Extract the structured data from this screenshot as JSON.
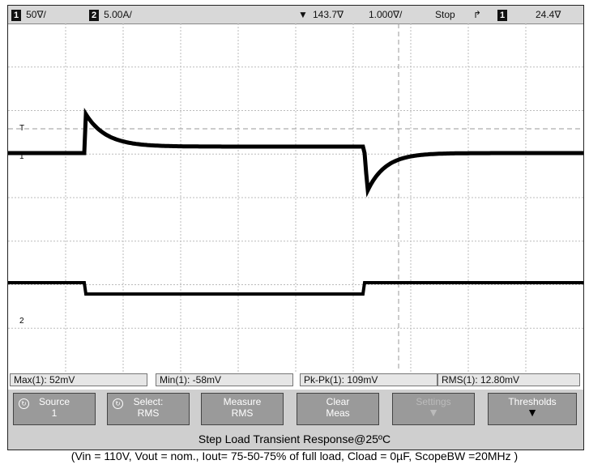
{
  "status": {
    "ch1_num": "1",
    "ch1_scale": "50∇/",
    "ch2_num": "2",
    "ch2_scale": "5.00A/",
    "trigger_pos": "143.7∇",
    "time_scale": "1.000∇/",
    "run_state": "Stop",
    "trig_src_num": "1",
    "trig_level": "24.4∇"
  },
  "markers": {
    "trigger": "T",
    "ch1": "1",
    "ch2": "2"
  },
  "measurements": {
    "max": "Max(1): 52mV",
    "min": "Min(1): -58mV",
    "pkpk": "Pk-Pk(1): 109mV",
    "rms": "RMS(1): 12.80mV"
  },
  "softkeys": [
    {
      "line1": "Source",
      "line2": "1"
    },
    {
      "line1": "Select:",
      "line2": "RMS"
    },
    {
      "line1": "Measure",
      "line2": "RMS"
    },
    {
      "line1": "Clear",
      "line2": "Meas"
    },
    {
      "line1": "Settings",
      "line2": ""
    },
    {
      "line1": "Thresholds",
      "line2": ""
    }
  ],
  "caption": {
    "title": "Step Load Transient Response@25ºC",
    "conditions": "(Vin = 110V, Vout = nom., Iout= 75-50-75% of full load, Cload = 0µF, ScopeBW =20MHz )"
  }
}
